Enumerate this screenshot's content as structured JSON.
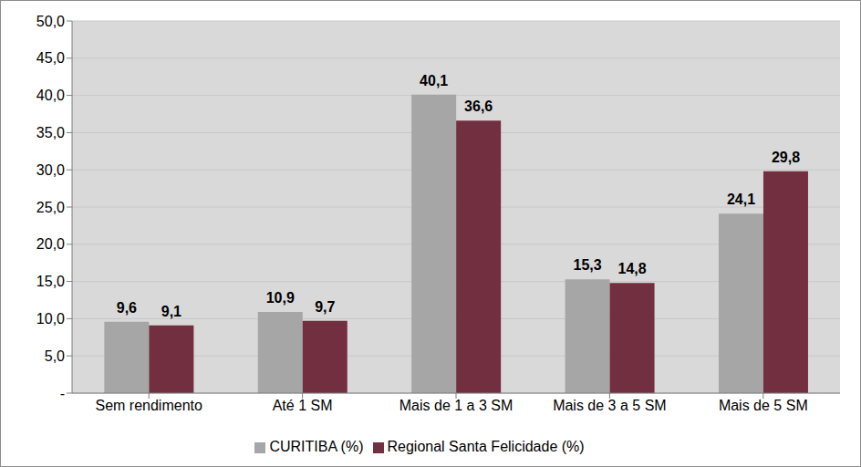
{
  "chart_data": {
    "type": "bar",
    "categories": [
      "Sem rendimento",
      "Até 1 SM",
      "Mais de 1 a 3 SM",
      "Mais de 3 a 5 SM",
      "Mais de 5 SM"
    ],
    "series": [
      {
        "name": "CURITIBA (%)",
        "color": "#a6a6a6",
        "values": [
          9.6,
          10.9,
          40.1,
          15.3,
          24.1
        ],
        "value_labels": [
          "9,6",
          "10,9",
          "40,1",
          "15,3",
          "24,1"
        ]
      },
      {
        "name": "Regional Santa Felicidade (%)",
        "color": "#722f3f",
        "values": [
          9.1,
          9.7,
          36.6,
          14.8,
          29.8
        ],
        "value_labels": [
          "9,1",
          "9,7",
          "36,6",
          "14,8",
          "29,8"
        ]
      }
    ],
    "ylim": [
      0,
      50
    ],
    "yticks": [
      {
        "value": 0,
        "label": "-"
      },
      {
        "value": 5,
        "label": "5,0"
      },
      {
        "value": 10,
        "label": "10,0"
      },
      {
        "value": 15,
        "label": "15,0"
      },
      {
        "value": 20,
        "label": "20,0"
      },
      {
        "value": 25,
        "label": "25,0"
      },
      {
        "value": 30,
        "label": "30,0"
      },
      {
        "value": 35,
        "label": "35,0"
      },
      {
        "value": 40,
        "label": "40,0"
      },
      {
        "value": 45,
        "label": "45,0"
      },
      {
        "value": 50,
        "label": "50,0"
      }
    ],
    "grid": true,
    "legend": "bottom",
    "data_labels": true
  }
}
